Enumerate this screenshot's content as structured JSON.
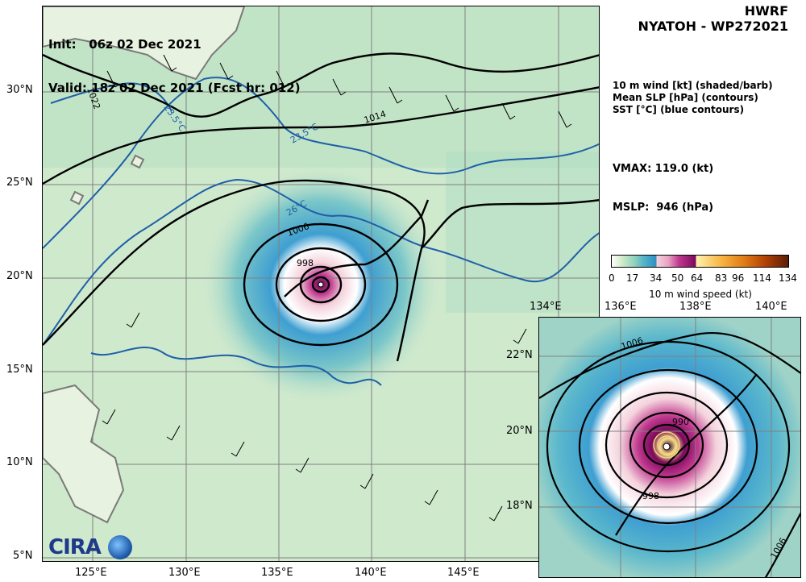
{
  "header": {
    "init_line": "Init:   06z 02 Dec 2021",
    "valid_line": "Valid: 18z 02 Dec 2021 (Fcst hr: 012)",
    "model": "HWRF",
    "storm": "NYATOH - WP272021"
  },
  "legend": {
    "line1": "10 m wind [kt] (shaded/barb)",
    "line2": "Mean SLP [hPa] (contours)",
    "line3": "SST [°C] (blue contours)"
  },
  "stats": {
    "vmax": "VMAX: 119.0 (kt)",
    "mslp": "MSLP:  946 (hPa)"
  },
  "colorbar": {
    "ticks": [
      "0",
      "17",
      "34",
      "50",
      "64",
      "83",
      "96",
      "114",
      "134"
    ],
    "label": "10 m wind speed (kt)"
  },
  "main_map": {
    "lon_labels": [
      "125°E",
      "130°E",
      "135°E",
      "140°E",
      "145°E"
    ],
    "lat_labels": [
      "30°N",
      "25°N",
      "20°N",
      "15°N",
      "10°N",
      "5°N"
    ],
    "slp_labels": [
      "1022",
      "1014",
      "1006",
      "998",
      "1006"
    ],
    "sst_labels": [
      "23.5°C",
      "23.5°C",
      "26°C"
    ]
  },
  "inset_map": {
    "lon_labels_top": [
      "134°E"
    ],
    "lon_labels": [
      "136°E",
      "138°E",
      "140°E"
    ],
    "lat_labels": [
      "22°N",
      "20°N",
      "18°N"
    ],
    "slp_labels": [
      "1006",
      "990",
      "998",
      "1006"
    ]
  },
  "logo": {
    "text": "CIRA"
  },
  "colors": {
    "slp": "#000000",
    "sst": "#1f5fa8",
    "land": "#7a7a7a",
    "grid": "#808080"
  }
}
